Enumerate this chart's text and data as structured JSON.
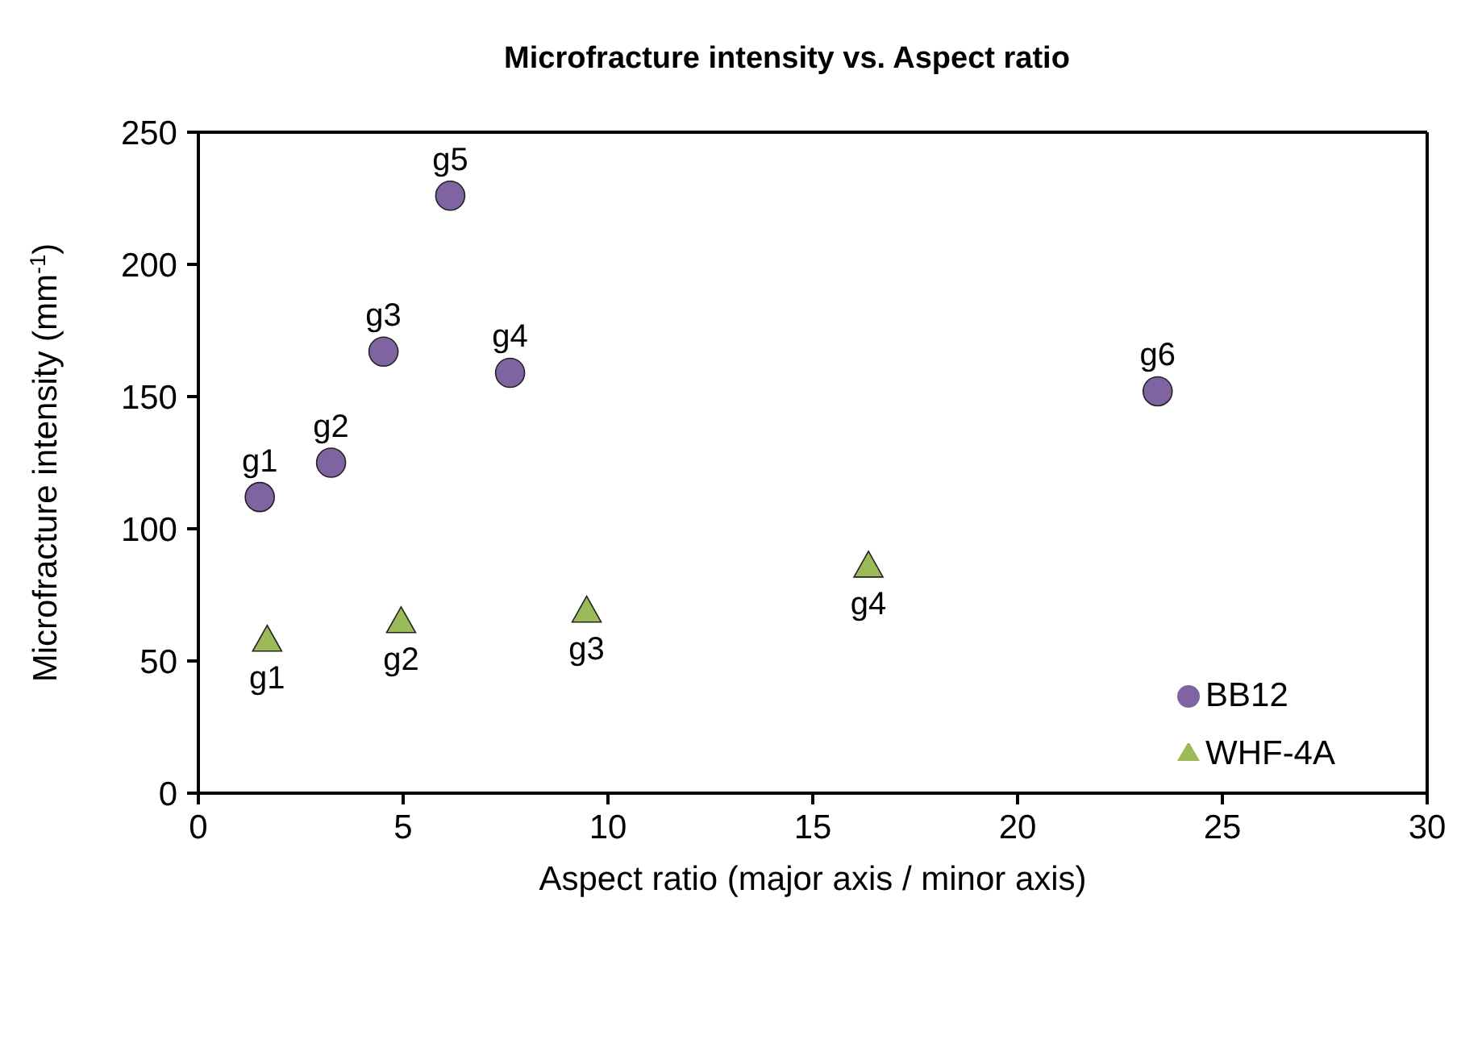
{
  "chart_data": {
    "type": "scatter",
    "title": "Microfracture intensity vs. Aspect ratio",
    "xlabel": "Aspect ratio (major axis / minor axis)",
    "ylabel": "Microfracture intensity (mm$^{-1}$)",
    "series": [
      {
        "name": "BB12",
        "color": "#8064a2",
        "marker": "circle",
        "x": [
          1.5,
          3.24,
          4.52,
          6.15,
          7.61,
          23.42
        ],
        "values": [
          112,
          125,
          167,
          226,
          159,
          152
        ]
      },
      {
        "name": "WHF-4A",
        "color": "#9bbb59",
        "marker": "triangle",
        "x": [
          1.68,
          4.95,
          9.48,
          16.36
        ],
        "values": [
          58,
          65,
          69,
          86
        ]
      }
    ],
    "annotations": [
      {
        "text": "g1",
        "x": 1.5,
        "y": 112
      },
      {
        "text": "g2",
        "x": 3.24,
        "y": 125
      },
      {
        "text": "g3",
        "x": 4.52,
        "y": 167
      },
      {
        "text": "g5",
        "x": 6.15,
        "y": 226
      },
      {
        "text": "g4",
        "x": 7.61,
        "y": 159
      },
      {
        "text": "g6",
        "x": 23.42,
        "y": 152
      },
      {
        "text": "g1",
        "x": 1.68,
        "y": 58
      },
      {
        "text": "g2",
        "x": 4.95,
        "y": 65
      },
      {
        "text": "g3",
        "x": 9.48,
        "y": 69
      },
      {
        "text": "g4",
        "x": 16.36,
        "y": 86
      }
    ],
    "xlim": [
      0,
      30
    ],
    "xticks": [
      0,
      5,
      10,
      15,
      20,
      25,
      30
    ],
    "ylim": [
      0,
      250
    ],
    "yticks": [
      0,
      50,
      100,
      150,
      200,
      250
    ],
    "grid": false,
    "legend": "bottom right"
  }
}
